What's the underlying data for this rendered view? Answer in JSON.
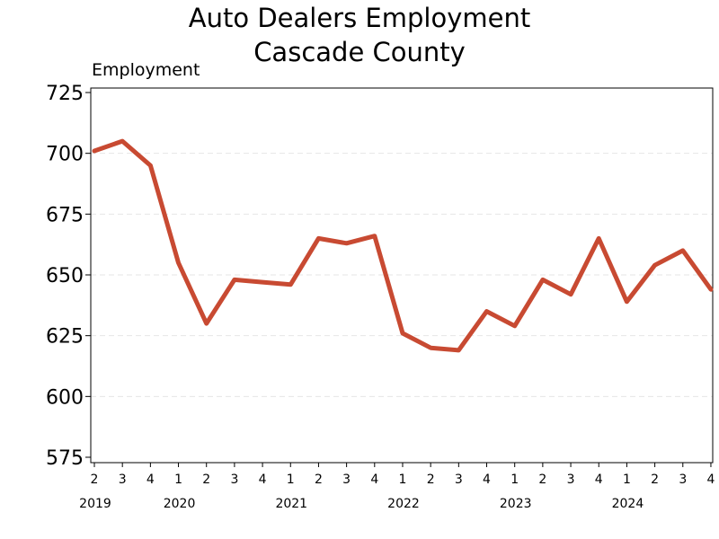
{
  "title_line1": "Auto Dealers Employment",
  "title_line2": "Cascade County",
  "chart_data": {
    "type": "line",
    "title": "Auto Dealers Employment Cascade County",
    "ylabel": "Employment",
    "xlabel": "",
    "ylim": [
      575,
      725
    ],
    "yticks": [
      575,
      600,
      625,
      650,
      675,
      700,
      725
    ],
    "grid": "horizontal dashed",
    "line_color": "#c84a32",
    "quarters": [
      "2",
      "3",
      "4",
      "1",
      "2",
      "3",
      "4",
      "1",
      "2",
      "3",
      "4",
      "1",
      "2",
      "3",
      "4",
      "1",
      "2",
      "3",
      "4",
      "1",
      "2",
      "3",
      "4"
    ],
    "years": [
      {
        "label": "2019",
        "index": 0
      },
      {
        "label": "2020",
        "index": 3
      },
      {
        "label": "2021",
        "index": 7
      },
      {
        "label": "2022",
        "index": 11
      },
      {
        "label": "2023",
        "index": 15
      },
      {
        "label": "2024",
        "index": 19
      }
    ],
    "series": [
      {
        "values": [
          701,
          705,
          695,
          655,
          630,
          648,
          647,
          646,
          665,
          663,
          666,
          626,
          620,
          619,
          635,
          629,
          648,
          642,
          665,
          639,
          654,
          660,
          644
        ]
      }
    ]
  }
}
